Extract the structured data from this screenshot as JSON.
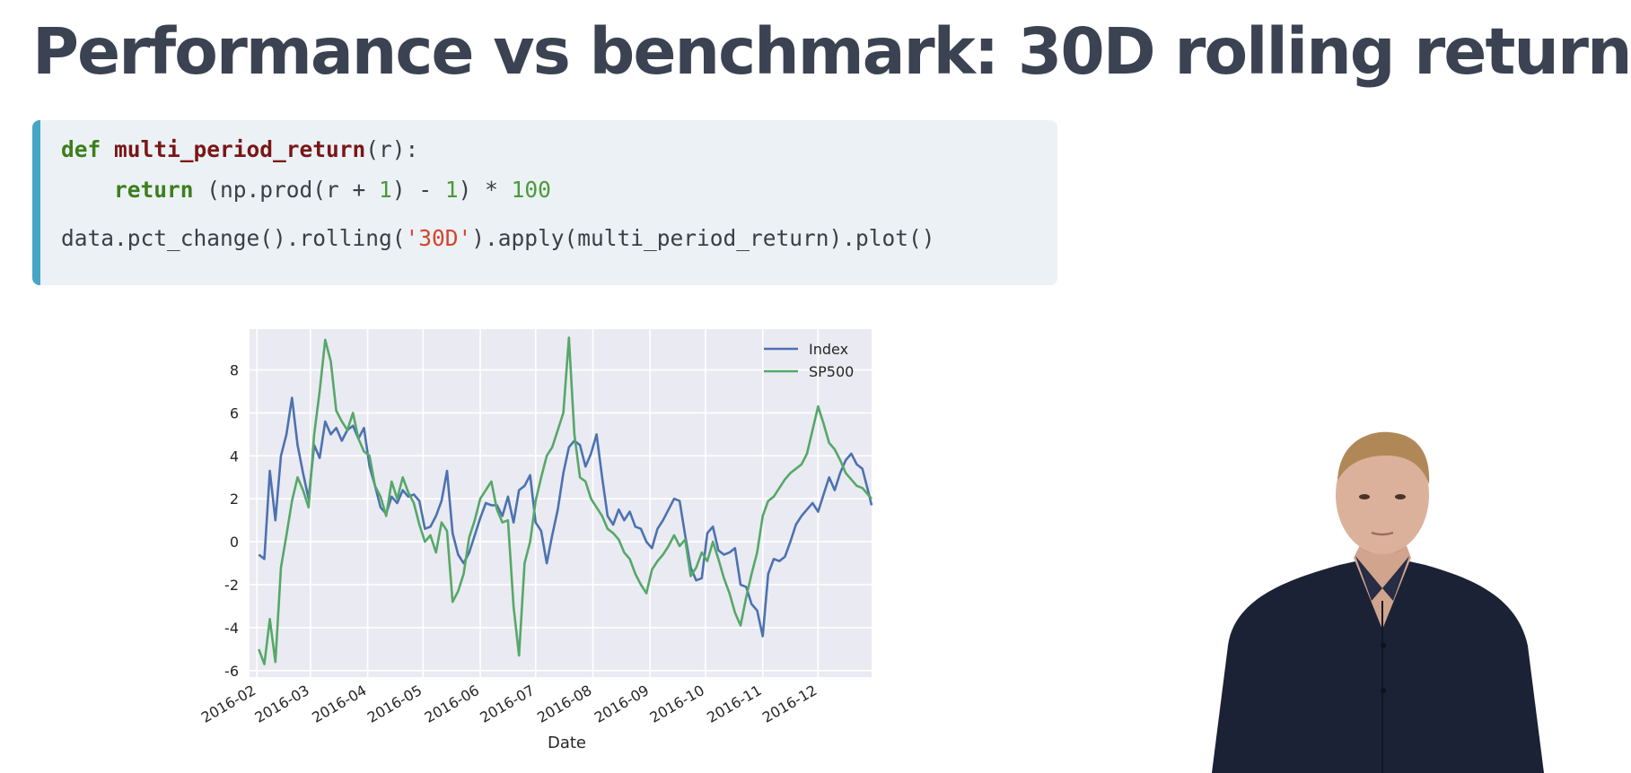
{
  "slide": {
    "title": "Performance vs benchmark: 30D rolling return"
  },
  "code": {
    "line1": {
      "kw": "def",
      "fn": "multi_period_return",
      "rest": "(r):"
    },
    "line2": {
      "indent": "    ",
      "kw": "return",
      "p1": " (np.prod(r + ",
      "n1": "1",
      "p2": ") - ",
      "n2": "1",
      "p3": ") * ",
      "n3": "100"
    },
    "line3": {
      "p1": "data.pct_change().rolling(",
      "str": "'30D'",
      "p2": ").apply(multi_period_return).plot()"
    }
  },
  "colors": {
    "title": "#3b4252",
    "code_background": "#ebf1f5",
    "code_accent": "#47a5c6",
    "index_line": "#4c72b0",
    "sp500_line": "#55a868",
    "plot_background": "#eaeaf2"
  },
  "chart_data": {
    "type": "line",
    "title": "",
    "xlabel": "Date",
    "ylabel": "",
    "grid": true,
    "legend_position": "top-right",
    "x_range": [
      "2016-01-28",
      "2016-12-30"
    ],
    "ylim": [
      -6.3,
      9.9
    ],
    "x_ticks": [
      {
        "date": "2016-02-01",
        "label": "2016-02"
      },
      {
        "date": "2016-03-01",
        "label": "2016-03"
      },
      {
        "date": "2016-04-01",
        "label": "2016-04"
      },
      {
        "date": "2016-05-01",
        "label": "2016-05"
      },
      {
        "date": "2016-06-01",
        "label": "2016-06"
      },
      {
        "date": "2016-07-01",
        "label": "2016-07"
      },
      {
        "date": "2016-08-01",
        "label": "2016-08"
      },
      {
        "date": "2016-09-01",
        "label": "2016-09"
      },
      {
        "date": "2016-10-01",
        "label": "2016-10"
      },
      {
        "date": "2016-11-01",
        "label": "2016-11"
      },
      {
        "date": "2016-12-01",
        "label": "2016-12"
      }
    ],
    "y_ticks": [
      8,
      6,
      4,
      2,
      0,
      -2,
      -4,
      -6
    ],
    "x": [
      "2016-02-02",
      "2016-02-05",
      "2016-02-08",
      "2016-02-11",
      "2016-02-14",
      "2016-02-17",
      "2016-02-20",
      "2016-02-23",
      "2016-02-26",
      "2016-02-29",
      "2016-03-03",
      "2016-03-06",
      "2016-03-09",
      "2016-03-12",
      "2016-03-15",
      "2016-03-18",
      "2016-03-21",
      "2016-03-24",
      "2016-03-27",
      "2016-03-30",
      "2016-04-02",
      "2016-04-05",
      "2016-04-08",
      "2016-04-11",
      "2016-04-14",
      "2016-04-17",
      "2016-04-20",
      "2016-04-23",
      "2016-04-26",
      "2016-04-29",
      "2016-05-02",
      "2016-05-05",
      "2016-05-08",
      "2016-05-11",
      "2016-05-14",
      "2016-05-17",
      "2016-05-20",
      "2016-05-23",
      "2016-05-26",
      "2016-05-29",
      "2016-06-01",
      "2016-06-04",
      "2016-06-07",
      "2016-06-10",
      "2016-06-13",
      "2016-06-16",
      "2016-06-19",
      "2016-06-22",
      "2016-06-25",
      "2016-06-28",
      "2016-07-01",
      "2016-07-04",
      "2016-07-07",
      "2016-07-10",
      "2016-07-13",
      "2016-07-16",
      "2016-07-19",
      "2016-07-22",
      "2016-07-25",
      "2016-07-28",
      "2016-07-31",
      "2016-08-03",
      "2016-08-06",
      "2016-08-09",
      "2016-08-12",
      "2016-08-15",
      "2016-08-18",
      "2016-08-21",
      "2016-08-24",
      "2016-08-27",
      "2016-08-30",
      "2016-09-02",
      "2016-09-05",
      "2016-09-08",
      "2016-09-11",
      "2016-09-14",
      "2016-09-17",
      "2016-09-20",
      "2016-09-23",
      "2016-09-26",
      "2016-09-29",
      "2016-10-02",
      "2016-10-05",
      "2016-10-08",
      "2016-10-11",
      "2016-10-14",
      "2016-10-17",
      "2016-10-20",
      "2016-10-23",
      "2016-10-26",
      "2016-10-29",
      "2016-11-01",
      "2016-11-04",
      "2016-11-07",
      "2016-11-10",
      "2016-11-13",
      "2016-11-16",
      "2016-11-19",
      "2016-11-22",
      "2016-11-25",
      "2016-11-28",
      "2016-12-01",
      "2016-12-04",
      "2016-12-07",
      "2016-12-10",
      "2016-12-13",
      "2016-12-16",
      "2016-12-19",
      "2016-12-22",
      "2016-12-25",
      "2016-12-28",
      "2016-12-30"
    ],
    "series": [
      {
        "name": "Index",
        "color": "#4c72b0",
        "values": [
          -0.6,
          -0.8,
          3.3,
          1.0,
          4.0,
          5.0,
          6.7,
          4.5,
          3.2,
          2.0,
          4.5,
          3.9,
          5.6,
          5.0,
          5.3,
          4.7,
          5.2,
          5.4,
          4.8,
          5.3,
          3.5,
          2.6,
          1.6,
          1.3,
          2.1,
          1.8,
          2.4,
          2.1,
          2.2,
          1.9,
          0.6,
          0.7,
          1.2,
          1.9,
          3.3,
          0.4,
          -0.6,
          -1.0,
          -0.5,
          0.3,
          1.1,
          1.8,
          1.7,
          1.7,
          1.2,
          2.1,
          0.9,
          2.4,
          2.6,
          3.1,
          0.9,
          0.5,
          -1.0,
          0.3,
          1.5,
          3.2,
          4.4,
          4.7,
          4.5,
          3.5,
          4.1,
          5.0,
          3.0,
          1.2,
          0.8,
          1.5,
          1.0,
          1.4,
          0.7,
          0.6,
          0.0,
          -0.3,
          0.6,
          1.0,
          1.5,
          2.0,
          1.9,
          0.3,
          -1.2,
          -1.8,
          -1.7,
          0.4,
          0.7,
          -0.4,
          -0.6,
          -0.5,
          -0.3,
          -2.0,
          -2.1,
          -2.9,
          -3.2,
          -4.4,
          -1.5,
          -0.8,
          -0.9,
          -0.7,
          0.0,
          0.8,
          1.2,
          1.5,
          1.8,
          1.4,
          2.2,
          3.0,
          2.4,
          3.2,
          3.8,
          4.1,
          3.6,
          3.4,
          2.4,
          1.7
        ]
      },
      {
        "name": "SP500",
        "color": "#55a868",
        "values": [
          -5.0,
          -5.7,
          -3.6,
          -5.6,
          -1.2,
          0.3,
          1.9,
          3.0,
          2.4,
          1.6,
          5.0,
          7.0,
          9.4,
          8.4,
          6.1,
          5.6,
          5.2,
          6.0,
          4.8,
          4.2,
          4.0,
          2.6,
          2.1,
          1.2,
          2.8,
          2.0,
          3.0,
          2.3,
          1.8,
          0.8,
          0.0,
          0.3,
          -0.5,
          0.9,
          0.5,
          -2.8,
          -2.3,
          -1.5,
          0.2,
          1.0,
          2.0,
          2.4,
          2.8,
          1.5,
          0.9,
          1.0,
          -3.0,
          -5.3,
          -1.0,
          0.0,
          1.9,
          3.0,
          4.0,
          4.4,
          5.2,
          6.0,
          9.5,
          5.0,
          3.0,
          2.8,
          2.0,
          1.6,
          1.2,
          0.6,
          0.4,
          0.1,
          -0.5,
          -0.8,
          -1.5,
          -2.0,
          -2.4,
          -1.3,
          -0.9,
          -0.6,
          -0.2,
          0.3,
          -0.2,
          0.1,
          -1.6,
          -1.2,
          -0.5,
          -0.9,
          0.0,
          -0.8,
          -1.7,
          -2.4,
          -3.3,
          -3.9,
          -2.6,
          -1.5,
          -0.5,
          1.2,
          1.9,
          2.1,
          2.5,
          2.9,
          3.2,
          3.4,
          3.6,
          4.1,
          5.2,
          6.3,
          5.5,
          4.6,
          4.3,
          3.8,
          3.2,
          2.9,
          2.6,
          2.5,
          2.2,
          2.0
        ]
      }
    ]
  }
}
